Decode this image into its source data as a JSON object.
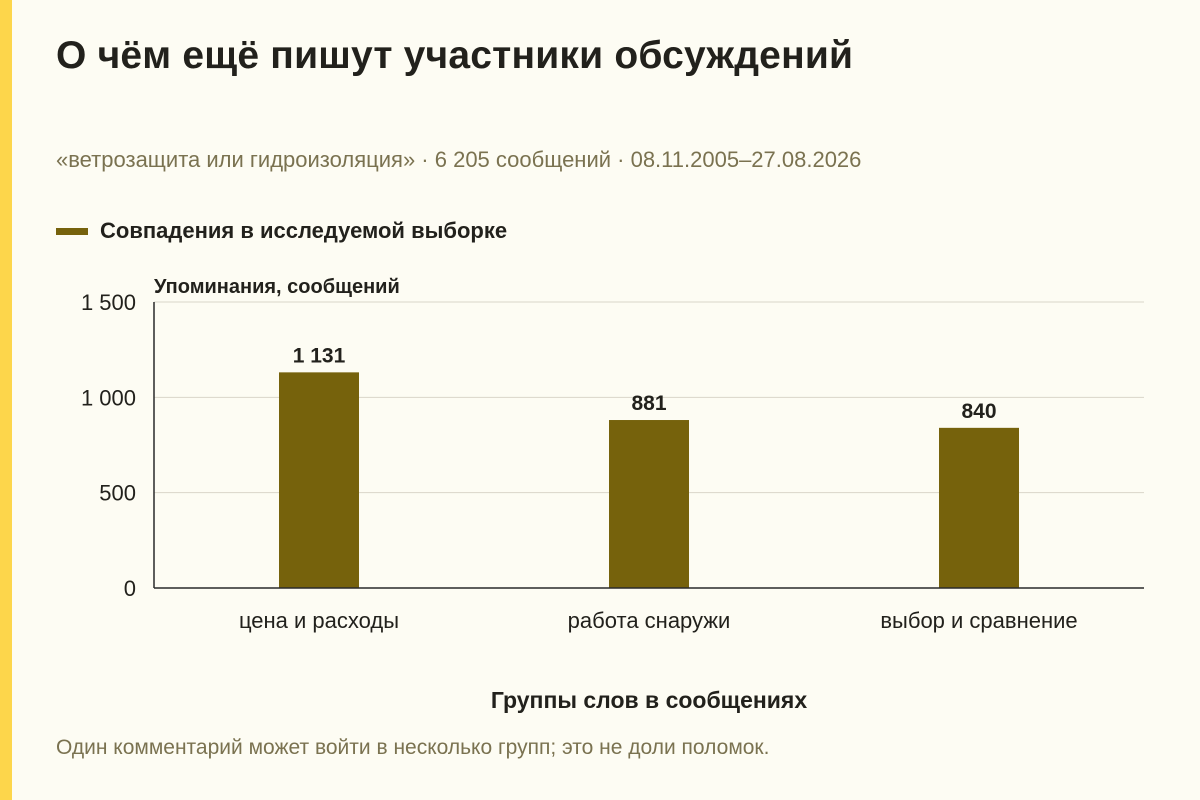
{
  "header": {
    "title": "О чём ещё пишут участники обсуждений",
    "subtitle": "«ветрозащита или гидроизоляция» · 6 205 сообщений · 08.11.2005–27.08.2026"
  },
  "footer": {
    "note": "Один комментарий может войти в несколько групп; это не доли поломок."
  },
  "colors": {
    "bar": "#76620c",
    "accent": "#fdd64b",
    "background": "#fdfcf3"
  },
  "chart_data": {
    "type": "bar",
    "categories": [
      "цена и расходы",
      "работа снаружи",
      "выбор и сравнение"
    ],
    "series": [
      {
        "name": "Совпадения в исследуемой выборке",
        "values": [
          1131,
          881,
          840
        ]
      }
    ],
    "value_labels": [
      "1 131",
      "881",
      "840"
    ],
    "xlabel": "Группы слов в сообщениях",
    "ylabel": "Упоминания, сообщений",
    "ylim": [
      0,
      1500
    ],
    "yticks": [
      0,
      500,
      1000,
      1500
    ],
    "ytick_labels": [
      "0",
      "500",
      "1 000",
      "1 500"
    ],
    "grid": true,
    "legend": "top-left"
  }
}
